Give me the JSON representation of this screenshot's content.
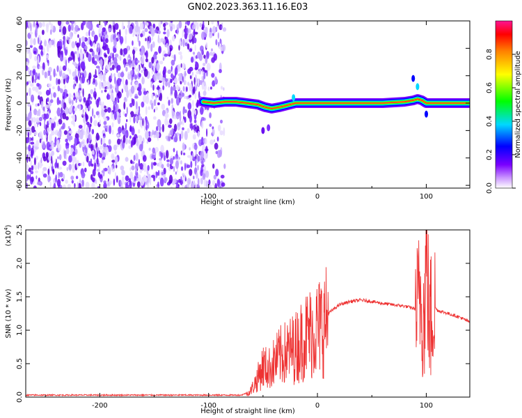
{
  "title": "GN02.2023.363.11.16.E03",
  "chart_data": [
    {
      "type": "heatmap",
      "xlabel": "Height of straight line (km)",
      "ylabel": "Frequency (Hz)",
      "xlim": [
        -268,
        140
      ],
      "ylim": [
        -62,
        60
      ],
      "x_ticks": [
        -200,
        -100,
        0,
        100
      ],
      "y_ticks": [
        -60,
        -40,
        -20,
        0,
        20,
        40,
        60
      ],
      "grid": false,
      "noise_region_x": [
        -268,
        -85
      ],
      "signal_ridge": {
        "x": [
          -105,
          -95,
          -85,
          -75,
          -65,
          -55,
          -48,
          -42,
          -35,
          -30,
          -25,
          -20,
          -10,
          0,
          20,
          40,
          60,
          80,
          88,
          92,
          96,
          100,
          110,
          120,
          140
        ],
        "frequency_hz": [
          1,
          0,
          1,
          1,
          0,
          -1,
          -3,
          -4,
          -3,
          -2,
          -1,
          0,
          0,
          0,
          0,
          0,
          0,
          1,
          2,
          3,
          2,
          0,
          0,
          0,
          0
        ]
      },
      "colorbar": {
        "label": "Normalized spectral amplitude",
        "range": [
          0,
          1
        ],
        "ticks": [
          "0.0",
          "0.2",
          "0.4",
          "0.6",
          "0.8"
        ],
        "colors": [
          "#ffffff",
          "#8000ff",
          "#0000ff",
          "#00ffff",
          "#00ff00",
          "#ffff00",
          "#ff0000",
          "#ff1493"
        ]
      }
    },
    {
      "type": "line",
      "series": [
        {
          "color": "#ee3333",
          "x": [
            -268,
            -200,
            -100,
            -70,
            -62,
            -55,
            -50,
            -45,
            -40,
            -35,
            -30,
            -25,
            -20,
            -15,
            -10,
            -5,
            0,
            10,
            20,
            30,
            40,
            50,
            60,
            70,
            80,
            88,
            92,
            95,
            98,
            100,
            103,
            106,
            110,
            120,
            130,
            140
          ],
          "y": [
            0.03,
            0.03,
            0.03,
            0.03,
            0.08,
            0.3,
            0.5,
            0.45,
            0.55,
            0.65,
            0.7,
            0.75,
            0.8,
            0.9,
            1.0,
            1.05,
            1.1,
            1.25,
            1.38,
            1.43,
            1.45,
            1.43,
            1.4,
            1.38,
            1.36,
            1.33,
            1.3,
            1.6,
            1.1,
            2.2,
            1.0,
            1.4,
            1.3,
            1.25,
            1.2,
            1.12
          ]
        }
      ],
      "xlabel": "Height of straight line (km)",
      "ylabel": "SNR (10 * v/v)",
      "y_multiplier": "(x10",
      "y_multiplier_exp": "4",
      "y_multiplier_close": ")",
      "xlim": [
        -268,
        140
      ],
      "ylim": [
        0,
        2.5
      ],
      "x_ticks": [
        -200,
        -100,
        0,
        100
      ],
      "y_ticks": [
        "0.0",
        "0.5",
        "1.0",
        "1.5",
        "2.0",
        "2.5"
      ],
      "grid": false
    }
  ]
}
